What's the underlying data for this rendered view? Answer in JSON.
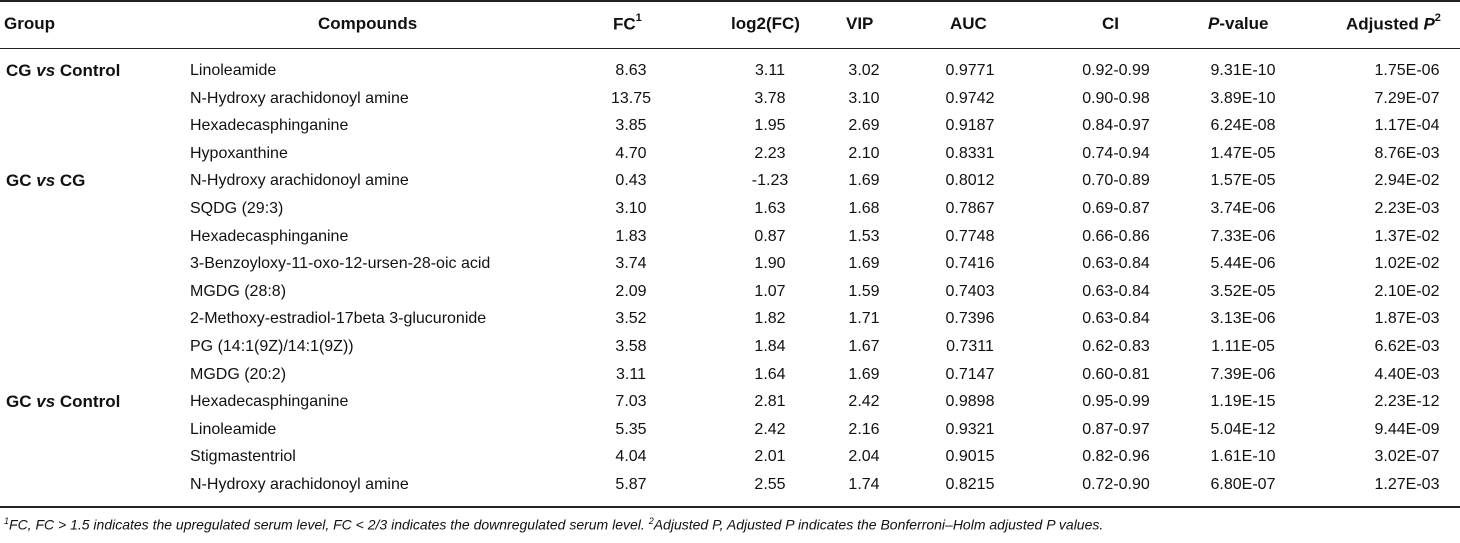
{
  "header": {
    "group": "Group",
    "compounds": "Compounds",
    "fc": "FC",
    "fc_sup": "1",
    "log2fc": "log2(FC)",
    "vip": "VIP",
    "auc": "AUC",
    "ci": "CI",
    "pvalue_italic": "P",
    "pvalue_rest": "-value",
    "adjusted_prefix": "Adjusted ",
    "adjusted_italic": "P",
    "adjusted_sup": "2"
  },
  "groups": [
    {
      "a": "CG",
      "vs": "vs",
      "b": "Control",
      "row": 0
    },
    {
      "a": "GC",
      "vs": "vs",
      "b": "CG",
      "row": 4
    },
    {
      "a": "GC",
      "vs": "vs",
      "b": "Control",
      "row": 12
    }
  ],
  "rows": [
    {
      "compound": "Linoleamide",
      "fc": "8.63",
      "log2fc": "3.11",
      "vip": "3.02",
      "auc": "0.9771",
      "ci": "0.92-0.99",
      "p": "9.31E-10",
      "adj": "1.75E-06"
    },
    {
      "compound": "N-Hydroxy arachidonoyl amine",
      "fc": "13.75",
      "log2fc": "3.78",
      "vip": "3.10",
      "auc": "0.9742",
      "ci": "0.90-0.98",
      "p": "3.89E-10",
      "adj": "7.29E-07"
    },
    {
      "compound": "Hexadecasphinganine",
      "fc": "3.85",
      "log2fc": "1.95",
      "vip": "2.69",
      "auc": "0.9187",
      "ci": "0.84-0.97",
      "p": "6.24E-08",
      "adj": "1.17E-04"
    },
    {
      "compound": "Hypoxanthine",
      "fc": "4.70",
      "log2fc": "2.23",
      "vip": "2.10",
      "auc": "0.8331",
      "ci": "0.74-0.94",
      "p": "1.47E-05",
      "adj": "8.76E-03"
    },
    {
      "compound": "N-Hydroxy arachidonoyl amine",
      "fc": "0.43",
      "log2fc": "-1.23",
      "vip": "1.69",
      "auc": "0.8012",
      "ci": "0.70-0.89",
      "p": "1.57E-05",
      "adj": "2.94E-02"
    },
    {
      "compound": "SQDG (29:3)",
      "fc": "3.10",
      "log2fc": "1.63",
      "vip": "1.68",
      "auc": "0.7867",
      "ci": "0.69-0.87",
      "p": "3.74E-06",
      "adj": "2.23E-03"
    },
    {
      "compound": "Hexadecasphinganine",
      "fc": "1.83",
      "log2fc": "0.87",
      "vip": "1.53",
      "auc": "0.7748",
      "ci": "0.66-0.86",
      "p": "7.33E-06",
      "adj": "1.37E-02"
    },
    {
      "compound": "3-Benzoyloxy-11-oxo-12-ursen-28-oic acid",
      "fc": "3.74",
      "log2fc": "1.90",
      "vip": "1.69",
      "auc": "0.7416",
      "ci": "0.63-0.84",
      "p": "5.44E-06",
      "adj": "1.02E-02"
    },
    {
      "compound": "MGDG (28:8)",
      "fc": "2.09",
      "log2fc": "1.07",
      "vip": "1.59",
      "auc": "0.7403",
      "ci": "0.63-0.84",
      "p": "3.52E-05",
      "adj": "2.10E-02"
    },
    {
      "compound": "2-Methoxy-estradiol-17beta 3-glucuronide",
      "fc": "3.52",
      "log2fc": "1.82",
      "vip": "1.71",
      "auc": "0.7396",
      "ci": "0.63-0.84",
      "p": "3.13E-06",
      "adj": "1.87E-03"
    },
    {
      "compound": "PG (14:1(9Z)/14:1(9Z))",
      "fc": "3.58",
      "log2fc": "1.84",
      "vip": "1.67",
      "auc": "0.7311",
      "ci": "0.62-0.83",
      "p": "1.11E-05",
      "adj": "6.62E-03"
    },
    {
      "compound": "MGDG (20:2)",
      "fc": "3.11",
      "log2fc": "1.64",
      "vip": "1.69",
      "auc": "0.7147",
      "ci": "0.60-0.81",
      "p": "7.39E-06",
      "adj": "4.40E-03"
    },
    {
      "compound": "Hexadecasphinganine",
      "fc": "7.03",
      "log2fc": "2.81",
      "vip": "2.42",
      "auc": "0.9898",
      "ci": "0.95-0.99",
      "p": "1.19E-15",
      "adj": "2.23E-12"
    },
    {
      "compound": "Linoleamide",
      "fc": "5.35",
      "log2fc": "2.42",
      "vip": "2.16",
      "auc": "0.9321",
      "ci": "0.87-0.97",
      "p": "5.04E-12",
      "adj": "9.44E-09"
    },
    {
      "compound": "Stigmastentriol",
      "fc": "4.04",
      "log2fc": "2.01",
      "vip": "2.04",
      "auc": "0.9015",
      "ci": "0.82-0.96",
      "p": "1.61E-10",
      "adj": "3.02E-07"
    },
    {
      "compound": "N-Hydroxy arachidonoyl amine",
      "fc": "5.87",
      "log2fc": "2.55",
      "vip": "1.74",
      "auc": "0.8215",
      "ci": "0.72-0.90",
      "p": "6.80E-07",
      "adj": "1.27E-03"
    }
  ],
  "footnote": {
    "sup1": "1",
    "text1": "FC, FC > 1.5 indicates the upregulated serum level, FC < 2/3 indicates the downregulated serum level. ",
    "sup2": "2",
    "text2": "Adjusted P, Adjusted P indicates the Bonferroni–Holm adjusted P values."
  }
}
